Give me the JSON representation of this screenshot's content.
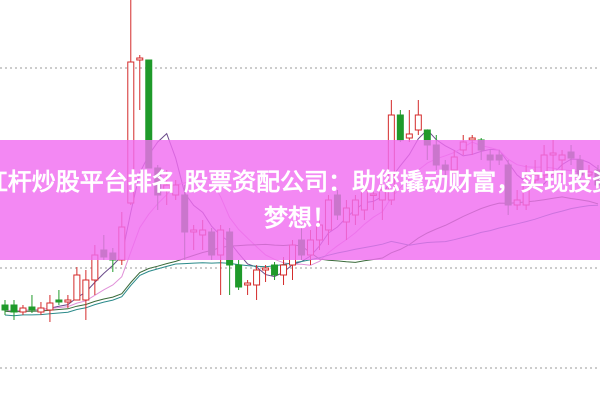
{
  "banner": {
    "title": "杠杆炒股平台排名 股票资配公司：助您撬动财富，实现投资梦想！",
    "color": "#f06ef0"
  },
  "chart_data": {
    "type": "candlestick",
    "title": "",
    "xlabel": "",
    "ylabel": "",
    "grid": "horizontal dotted",
    "up_color": "#d42a2a",
    "down_color": "#1f9a2a",
    "moving_averages": [
      {
        "period": 5,
        "color": "#6a4a8a"
      },
      {
        "period": 10,
        "color": "#e090d8"
      },
      {
        "period": 20,
        "color": "#3a6a3a"
      },
      {
        "period": 30,
        "color": "#2a8a8a"
      }
    ],
    "candles": [
      [
        95,
        90,
        100,
        85
      ],
      [
        95,
        88,
        100,
        80
      ],
      [
        88,
        92,
        95,
        85
      ],
      [
        93,
        90,
        105,
        87
      ],
      [
        88,
        92,
        98,
        85
      ],
      [
        90,
        97,
        105,
        78
      ],
      [
        100,
        98,
        110,
        95
      ],
      [
        98,
        100,
        105,
        92
      ],
      [
        100,
        125,
        133,
        100
      ],
      [
        100,
        120,
        130,
        80
      ],
      [
        120,
        145,
        155,
        105
      ],
      [
        150,
        143,
        165,
        140
      ],
      [
        147,
        140,
        152,
        128
      ],
      [
        140,
        173,
        188,
        135
      ],
      [
        197,
        338,
        400,
        195
      ],
      [
        340,
        342,
        345,
        290
      ],
      [
        340,
        232,
        340,
        232
      ],
      [
        232,
        205,
        235,
        190
      ],
      [
        210,
        215,
        230,
        195
      ],
      [
        205,
        215,
        220,
        200
      ],
      [
        205,
        168,
        215,
        140
      ],
      [
        168,
        170,
        175,
        150
      ],
      [
        165,
        170,
        180,
        150
      ],
      [
        168,
        145,
        172,
        140
      ],
      [
        145,
        170,
        175,
        105
      ],
      [
        168,
        135,
        172,
        105
      ],
      [
        135,
        113,
        140,
        110
      ],
      [
        115,
        117,
        120,
        105
      ],
      [
        115,
        130,
        135,
        100
      ],
      [
        130,
        132,
        135,
        118
      ],
      [
        135,
        125,
        138,
        120
      ],
      [
        125,
        135,
        143,
        115
      ],
      [
        135,
        155,
        160,
        120
      ],
      [
        160,
        145,
        175,
        140
      ],
      [
        145,
        160,
        170,
        135
      ],
      [
        160,
        175,
        180,
        150
      ],
      [
        170,
        200,
        205,
        155
      ],
      [
        205,
        185,
        210,
        180
      ],
      [
        178,
        192,
        200,
        160
      ],
      [
        185,
        200,
        205,
        175
      ],
      [
        190,
        210,
        215,
        180
      ],
      [
        205,
        206,
        215,
        190
      ],
      [
        200,
        210,
        218,
        180
      ],
      [
        200,
        285,
        300,
        195
      ],
      [
        285,
        260,
        290,
        258
      ],
      [
        262,
        266,
        290,
        258
      ],
      [
        270,
        285,
        300,
        265
      ],
      [
        270,
        255,
        270,
        240
      ],
      [
        255,
        235,
        265,
        230
      ],
      [
        235,
        230,
        240,
        225
      ],
      [
        230,
        243,
        250,
        225
      ],
      [
        250,
        258,
        265,
        245
      ],
      [
        260,
        262,
        265,
        245
      ],
      [
        260,
        250,
        262,
        240
      ],
      [
        245,
        240,
        250,
        230
      ],
      [
        245,
        240,
        250,
        235
      ],
      [
        235,
        195,
        240,
        185
      ],
      [
        195,
        200,
        210,
        190
      ],
      [
        195,
        215,
        235,
        190
      ],
      [
        220,
        225,
        240,
        215
      ],
      [
        225,
        245,
        255,
        220
      ],
      [
        245,
        247,
        260,
        225
      ],
      [
        240,
        245,
        250,
        225
      ],
      [
        248,
        242,
        255,
        235
      ],
      [
        240,
        225,
        245,
        215
      ],
      [
        225,
        228,
        235,
        215
      ],
      [
        230,
        215,
        235,
        210
      ]
    ],
    "candle_fields": [
      "open",
      "close",
      "high",
      "low"
    ]
  }
}
